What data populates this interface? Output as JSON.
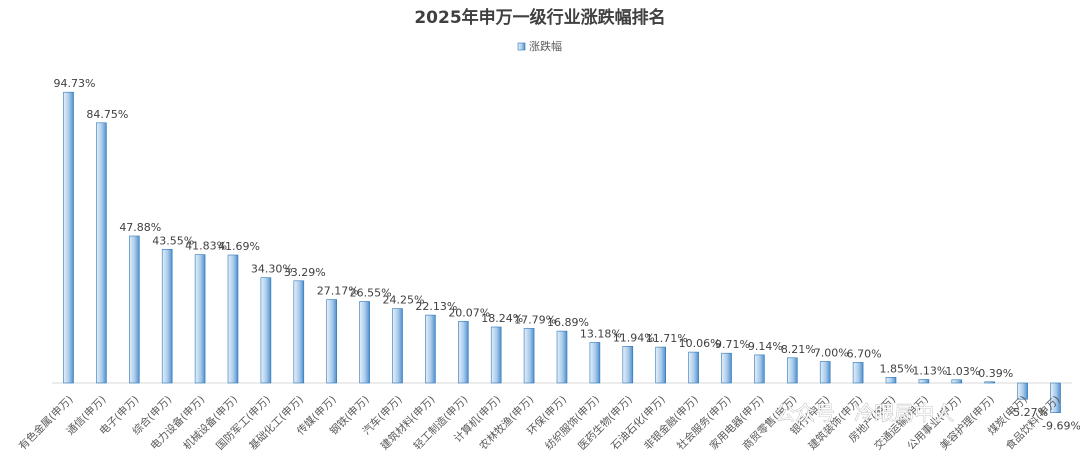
{
  "chart_data": {
    "type": "bar",
    "title": "2025年申万一级行业涨跌幅排名",
    "legend": "涨跌幅",
    "legend_position": "top-center",
    "grid": false,
    "ylim": [
      -12,
      100
    ],
    "value_suffix": "%",
    "categories": [
      "有色金属(申万)",
      "通信(申万)",
      "电子(申万)",
      "综合(申万)",
      "电力设备(申万)",
      "机械设备(申万)",
      "国防军工(申万)",
      "基础化工(申万)",
      "传媒(申万)",
      "钢铁(申万)",
      "汽车(申万)",
      "建筑材料(申万)",
      "轻工制造(申万)",
      "计算机(申万)",
      "农林牧渔(申万)",
      "环保(申万)",
      "纺织服饰(申万)",
      "医药生物(申万)",
      "石油石化(申万)",
      "非银金融(申万)",
      "社会服务(申万)",
      "家用电器(申万)",
      "商贸零售(申万)",
      "银行(申万)",
      "建筑装饰(申万)",
      "房地产(申万)",
      "交通运输(申万)",
      "公用事业(申万)",
      "美容护理(申万)",
      "煤炭(申万)",
      "食品饮料(申万)"
    ],
    "values": [
      94.73,
      84.75,
      47.88,
      43.55,
      41.83,
      41.69,
      34.3,
      33.29,
      27.17,
      26.55,
      24.25,
      22.13,
      20.07,
      18.24,
      17.79,
      16.89,
      13.18,
      11.94,
      11.71,
      10.06,
      9.71,
      9.14,
      8.21,
      7.0,
      6.7,
      1.85,
      1.13,
      1.03,
      0.39,
      -5.27,
      -9.69
    ],
    "labels": [
      "94.73%",
      "84.75%",
      "47.88%",
      "43.55%",
      "41.83%",
      "41.69%",
      "34.30%",
      "33.29%",
      "27.17%",
      "26.55%",
      "24.25%",
      "22.13%",
      "20.07%",
      "18.24%",
      "17.79%",
      "16.89%",
      "13.18%",
      "11.94%",
      "11.71%",
      "10.06%",
      "9.71%",
      "9.14%",
      "8.21%",
      "7.00%",
      "6.70%",
      "1.85%",
      "1.13%",
      "1.03%",
      "0.39%",
      "-5.27%",
      "-9.69%"
    ]
  },
  "watermark": "公众号 · 冷眼局中人",
  "colors": {
    "bar_light": "#e4eff9",
    "bar_dark": "#5b9bd5",
    "bar_edge": "#2e75b6",
    "axis": "#d9d9d9"
  }
}
